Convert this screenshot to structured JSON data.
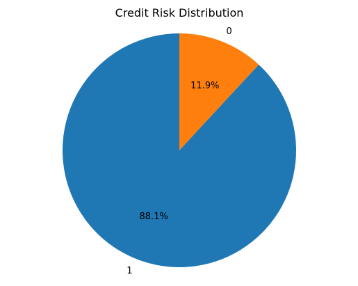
{
  "chart_data": {
    "type": "pie",
    "title": "Credit Risk Distribution",
    "start_angle_deg": 90,
    "direction": "counterclockwise",
    "slices": [
      {
        "label": "1",
        "value": 88.1,
        "pct_label": "88.1%",
        "color": "#1f77b4"
      },
      {
        "label": "0",
        "value": 11.9,
        "pct_label": "11.9%",
        "color": "#ff7f0e"
      }
    ]
  }
}
